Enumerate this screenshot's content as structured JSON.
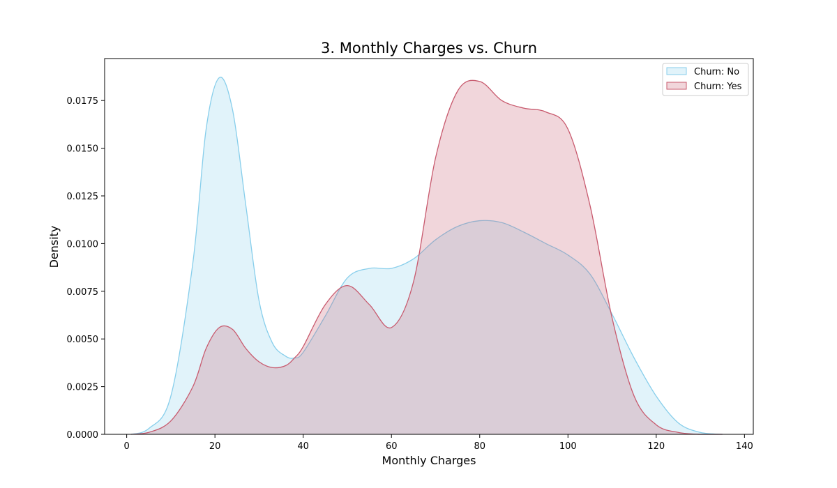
{
  "chart_data": {
    "type": "area",
    "title": "3. Monthly Charges vs. Churn",
    "xlabel": "Monthly Charges",
    "ylabel": "Density",
    "xlim": [
      -5,
      142
    ],
    "ylim": [
      0,
      0.0197
    ],
    "x_ticks": [
      0,
      20,
      40,
      60,
      80,
      100,
      120,
      140
    ],
    "x_tick_labels": [
      "0",
      "20",
      "40",
      "60",
      "80",
      "100",
      "120",
      "140"
    ],
    "y_ticks": [
      0,
      0.0025,
      0.005,
      0.0075,
      0.01,
      0.0125,
      0.015,
      0.0175
    ],
    "y_tick_labels": [
      "0.0000",
      "0.0025",
      "0.0050",
      "0.0075",
      "0.0100",
      "0.0125",
      "0.0150",
      "0.0175"
    ],
    "grid": false,
    "legend_position": "top-right",
    "x": [
      1,
      5,
      10,
      15,
      18,
      21,
      24,
      27,
      30,
      33,
      36,
      38,
      40,
      45,
      50,
      55,
      60,
      65,
      70,
      75,
      80,
      85,
      90,
      95,
      100,
      105,
      110,
      115,
      120,
      125,
      130,
      135
    ],
    "series": [
      {
        "name": "Churn: No",
        "line_color": "#87CEEB",
        "fill_color": "rgba(135,206,235,0.25)",
        "values": [
          0.0,
          0.0003,
          0.002,
          0.009,
          0.016,
          0.0187,
          0.017,
          0.012,
          0.007,
          0.0048,
          0.0041,
          0.004,
          0.0043,
          0.0062,
          0.0082,
          0.0087,
          0.0087,
          0.0092,
          0.0102,
          0.0109,
          0.0112,
          0.0111,
          0.0106,
          0.01,
          0.0094,
          0.0084,
          0.0063,
          0.004,
          0.002,
          0.0006,
          0.0001,
          0.0
        ]
      },
      {
        "name": "Churn: Yes",
        "line_color": "#C85A6E",
        "fill_color": "rgba(200,90,110,0.25)",
        "values": [
          0.0,
          0.0001,
          0.0007,
          0.0025,
          0.0045,
          0.0056,
          0.0055,
          0.0045,
          0.0038,
          0.0035,
          0.0036,
          0.004,
          0.0046,
          0.0068,
          0.0078,
          0.0068,
          0.0056,
          0.008,
          0.0145,
          0.018,
          0.0185,
          0.0175,
          0.0171,
          0.0169,
          0.016,
          0.012,
          0.0061,
          0.002,
          0.0005,
          0.0001,
          0.0,
          0.0
        ]
      }
    ]
  }
}
